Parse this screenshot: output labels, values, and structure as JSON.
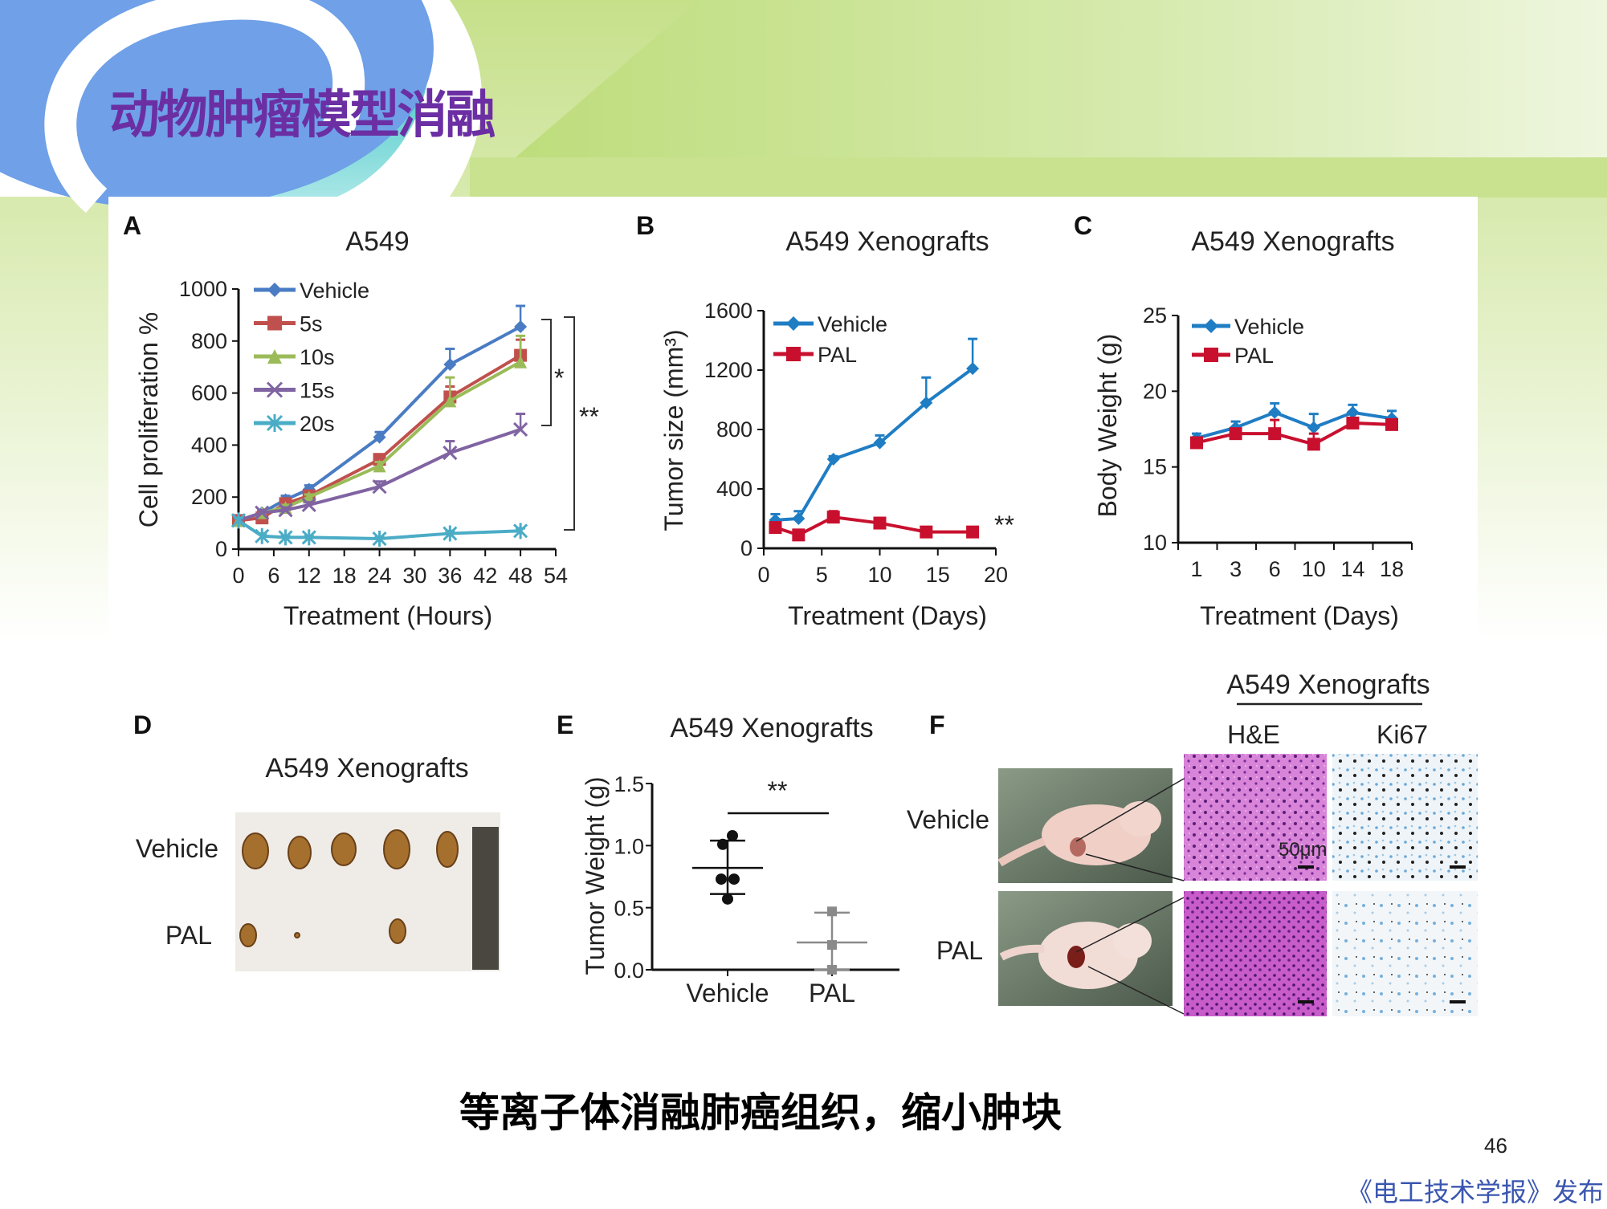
{
  "slide": {
    "title": "动物肿瘤模型消融",
    "caption": "等离子体消融肺癌组织，缩小肿块",
    "page_number": "46",
    "footer": "《电工技术学报》发布",
    "title_color": "#6b2fa3"
  },
  "panels": {
    "d": {
      "letter": "D",
      "title": "A549 Xenografts",
      "rows": [
        "Vehicle",
        "PAL"
      ]
    },
    "f": {
      "letter": "F",
      "header": "A549 Xenografts",
      "columns": [
        "H&E",
        "Ki67"
      ],
      "rows": [
        "Vehicle",
        "PAL"
      ],
      "scale_bar": "50μm"
    }
  },
  "chart_data": [
    {
      "panel": "A",
      "type": "line",
      "title": "A549",
      "xlabel": "Treatment  (Hours)",
      "ylabel": "Cell proliferation %",
      "xlim": [
        0,
        54
      ],
      "ylim": [
        0,
        1000
      ],
      "xticks": [
        "0",
        "6",
        "12",
        "18",
        "24",
        "30",
        "36",
        "42",
        "48",
        "54"
      ],
      "yticks": [
        "0",
        "200",
        "400",
        "600",
        "800",
        "1000"
      ],
      "grid": false,
      "legend": "top-left",
      "x": [
        0,
        4,
        8,
        12,
        24,
        36,
        48
      ],
      "series": [
        {
          "name": "Vehicle",
          "color": "#4a7cc4",
          "marker": "diamond",
          "values": [
            110,
            140,
            190,
            230,
            430,
            710,
            855
          ],
          "error": [
            10,
            10,
            15,
            15,
            20,
            60,
            80
          ]
        },
        {
          "name": "5s",
          "color": "#c0504d",
          "marker": "square",
          "values": [
            110,
            120,
            175,
            205,
            345,
            585,
            745
          ],
          "error": [
            10,
            10,
            10,
            15,
            15,
            40,
            60
          ]
        },
        {
          "name": "10s",
          "color": "#9bbb59",
          "marker": "triangle",
          "values": [
            110,
            140,
            160,
            200,
            320,
            570,
            720
          ],
          "error": [
            10,
            10,
            10,
            10,
            15,
            90,
            100
          ]
        },
        {
          "name": "15s",
          "color": "#8064a2",
          "marker": "x",
          "values": [
            110,
            140,
            150,
            170,
            240,
            370,
            460
          ],
          "error": [
            10,
            10,
            10,
            10,
            20,
            45,
            60
          ]
        },
        {
          "name": "20s",
          "color": "#4bacc6",
          "marker": "star",
          "values": [
            110,
            50,
            45,
            45,
            40,
            60,
            70
          ],
          "error": [
            10,
            10,
            5,
            5,
            5,
            10,
            10
          ]
        }
      ],
      "annotations": [
        "*",
        "**"
      ]
    },
    {
      "panel": "B",
      "type": "line",
      "title": "A549 Xenografts",
      "xlabel": "Treatment  (Days)",
      "ylabel": "Tumor  size  (mm³)",
      "xlim": [
        0,
        20
      ],
      "ylim": [
        0,
        1600
      ],
      "xticks": [
        "0",
        "5",
        "10",
        "15",
        "20"
      ],
      "yticks": [
        "0",
        "400",
        "800",
        "1200",
        "1600"
      ],
      "grid": false,
      "legend": "top-left",
      "x": [
        1,
        3,
        6,
        10,
        14,
        18
      ],
      "series": [
        {
          "name": "Vehicle",
          "color": "#1f7dc4",
          "marker": "diamond",
          "values": [
            190,
            200,
            600,
            710,
            980,
            1210
          ],
          "error": [
            40,
            50,
            20,
            50,
            170,
            200
          ]
        },
        {
          "name": "PAL",
          "color": "#c8102e",
          "marker": "square",
          "values": [
            140,
            90,
            210,
            170,
            110,
            110
          ],
          "error": [
            30,
            20,
            40,
            20,
            30,
            30
          ]
        }
      ],
      "annotations": [
        "**"
      ]
    },
    {
      "panel": "C",
      "type": "line",
      "title": "A549 Xenografts",
      "xlabel": "Treatment  (Days)",
      "ylabel": "Body Weight (g)",
      "ylim": [
        10,
        25
      ],
      "categories": [
        "1",
        "3",
        "6",
        "10",
        "14",
        "18"
      ],
      "yticks": [
        "10",
        "15",
        "20",
        "25"
      ],
      "grid": false,
      "legend": "top-left",
      "series": [
        {
          "name": "Vehicle",
          "color": "#1f7dc4",
          "marker": "diamond",
          "values": [
            16.9,
            17.6,
            18.6,
            17.6,
            18.6,
            18.2
          ],
          "error": [
            0.3,
            0.4,
            0.6,
            0.9,
            0.5,
            0.5
          ]
        },
        {
          "name": "PAL",
          "color": "#c8102e",
          "marker": "square",
          "values": [
            16.6,
            17.2,
            17.2,
            16.5,
            17.9,
            17.8
          ],
          "error": [
            0.3,
            0.3,
            0.9,
            0.7,
            0.3,
            0.3
          ]
        }
      ]
    },
    {
      "panel": "E",
      "type": "scatter",
      "title": "A549 Xenografts",
      "ylabel": "Tumor  Weight (g)",
      "ylim": [
        0,
        1.5
      ],
      "categories": [
        "Vehicle",
        "PAL"
      ],
      "yticks": [
        "0.0",
        "0.5",
        "1.0",
        "1.5"
      ],
      "grid": false,
      "groups": [
        {
          "name": "Vehicle",
          "color": "#111111",
          "points": [
            1.08,
            1.01,
            0.73,
            0.73,
            0.57
          ],
          "mean": 0.82,
          "sd_upper": 1.04,
          "sd_lower": 0.61
        },
        {
          "name": "PAL",
          "color": "#8a8a8a",
          "points": [
            0.47,
            0.2,
            0.0
          ],
          "mean": 0.22,
          "sd_upper": 0.46,
          "sd_lower": 0.0
        }
      ],
      "annotations": [
        "**"
      ]
    }
  ]
}
